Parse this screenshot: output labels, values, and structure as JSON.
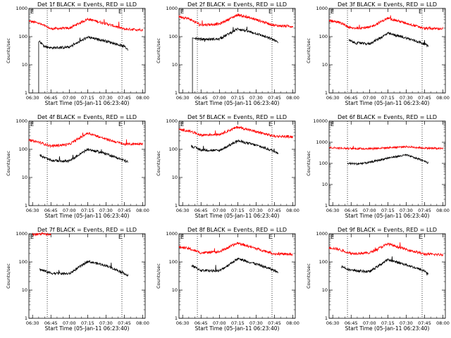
{
  "chart_data": [
    {
      "type": "line",
      "title": "Det 1f BLACK = Events, RED = LLD",
      "ylabel": "Counts/sec",
      "xlabel": "Start Time (05-Jan-11 06:23:40)",
      "yscale": "log",
      "ylim": [
        1,
        1000
      ],
      "yticks": [
        "1",
        "10",
        "100",
        "1000"
      ],
      "xticks": [
        "06:30",
        "06:45",
        "07:00",
        "07:15",
        "07:30",
        "07:45",
        "08:00"
      ],
      "xlim": [
        "06:27",
        "08:02"
      ],
      "vlines": [
        "06:42",
        "07:43"
      ],
      "corner_marks": [
        "E",
        "E"
      ],
      "series": [
        {
          "color": "#ff0000",
          "x": [
            "06:27",
            "06:35",
            "06:45",
            "07:00",
            "07:15",
            "07:30",
            "07:45",
            "08:00"
          ],
          "y": [
            360,
            300,
            190,
            200,
            420,
            290,
            185,
            175
          ]
        },
        {
          "color": "#000000",
          "x": [
            "06:36",
            "06:40",
            "06:45",
            "07:00",
            "07:15",
            "07:30",
            "07:45",
            "07:48"
          ],
          "y": [
            65,
            45,
            40,
            42,
            95,
            70,
            45,
            35
          ],
          "drop": {
            "x": "06:35",
            "y": 1
          }
        }
      ]
    },
    {
      "type": "line",
      "title": "Det 2f BLACK = Events, RED = LLD",
      "ylabel": "Counts/sec",
      "xlabel": "Start Time (05-Jan-11 06:23:40)",
      "yscale": "log",
      "ylim": [
        1,
        1000
      ],
      "yticks": [
        "1",
        "10",
        "100",
        "1000"
      ],
      "xticks": [
        "06:30",
        "06:45",
        "07:00",
        "07:15",
        "07:30",
        "07:45",
        "08:00"
      ],
      "xlim": [
        "06:27",
        "08:02"
      ],
      "vlines": [
        "06:42",
        "07:43"
      ],
      "corner_marks": [
        "E",
        "E"
      ],
      "series": [
        {
          "color": "#ff0000",
          "x": [
            "06:27",
            "06:35",
            "06:45",
            "07:00",
            "07:15",
            "07:30",
            "07:45",
            "08:00"
          ],
          "y": [
            520,
            430,
            260,
            280,
            600,
            400,
            250,
            230
          ]
        },
        {
          "color": "#000000",
          "x": [
            "06:40",
            "06:45",
            "07:00",
            "07:15",
            "07:30",
            "07:45",
            "07:48"
          ],
          "y": [
            90,
            80,
            82,
            190,
            130,
            75,
            60
          ],
          "drop": {
            "x": "06:38",
            "y": 1
          }
        }
      ]
    },
    {
      "type": "line",
      "title": "Det 3f BLACK = Events, RED = LLD",
      "ylabel": "Counts/sec",
      "xlabel": "Start Time (05-Jan-11 06:23:40)",
      "yscale": "log",
      "ylim": [
        1,
        1000
      ],
      "yticks": [
        "1",
        "10",
        "100",
        "1000"
      ],
      "xticks": [
        "06:30",
        "06:45",
        "07:00",
        "07:15",
        "07:30",
        "07:45",
        "08:00"
      ],
      "xlim": [
        "06:27",
        "08:02"
      ],
      "vlines": [
        "06:42",
        "07:43"
      ],
      "corner_marks": [
        "E",
        "E"
      ],
      "series": [
        {
          "color": "#ff0000",
          "x": [
            "06:27",
            "06:35",
            "06:45",
            "07:00",
            "07:15",
            "07:30",
            "07:45",
            "08:00"
          ],
          "y": [
            380,
            320,
            200,
            210,
            450,
            300,
            195,
            190
          ]
        },
        {
          "color": "#000000",
          "x": [
            "06:43",
            "06:48",
            "07:00",
            "07:15",
            "07:30",
            "07:45",
            "07:48"
          ],
          "y": [
            75,
            60,
            55,
            130,
            90,
            55,
            45
          ]
        }
      ]
    },
    {
      "type": "line",
      "title": "Det 4f BLACK = Events, RED = LLD",
      "ylabel": "Counts/sec",
      "xlabel": "Start Time (05-Jan-11 06:23:40)",
      "yscale": "log",
      "ylim": [
        1,
        1000
      ],
      "yticks": [
        "1",
        "10",
        "100",
        "1000"
      ],
      "xticks": [
        "06:30",
        "06:45",
        "07:00",
        "07:15",
        "07:30",
        "07:45",
        "08:00"
      ],
      "xlim": [
        "06:27",
        "08:02"
      ],
      "vlines": [
        "06:42",
        "07:43"
      ],
      "corner_marks": [
        "E",
        "E"
      ],
      "series": [
        {
          "color": "#ff0000",
          "x": [
            "06:27",
            "06:35",
            "06:45",
            "07:00",
            "07:15",
            "07:30",
            "07:45",
            "08:00"
          ],
          "y": [
            210,
            180,
            130,
            150,
            380,
            230,
            150,
            160
          ]
        },
        {
          "color": "#000000",
          "x": [
            "06:36",
            "06:45",
            "07:00",
            "07:15",
            "07:30",
            "07:45",
            "07:48"
          ],
          "y": [
            60,
            40,
            38,
            100,
            70,
            40,
            35
          ]
        }
      ]
    },
    {
      "type": "line",
      "title": "Det 5f BLACK = Events, RED = LLD",
      "ylabel": "Counts/sec",
      "xlabel": "Start Time (05-Jan-11 06:23:40)",
      "yscale": "log",
      "ylim": [
        1,
        1000
      ],
      "yticks": [
        "1",
        "10",
        "100",
        "1000"
      ],
      "xticks": [
        "06:30",
        "06:45",
        "07:00",
        "07:15",
        "07:30",
        "07:45",
        "08:00"
      ],
      "xlim": [
        "06:27",
        "08:02"
      ],
      "vlines": [
        "06:42",
        "07:43"
      ],
      "corner_marks": [
        "E",
        "E"
      ],
      "series": [
        {
          "color": "#ff0000",
          "x": [
            "06:27",
            "06:35",
            "06:45",
            "07:00",
            "07:15",
            "07:30",
            "07:45",
            "08:00"
          ],
          "y": [
            500,
            450,
            320,
            340,
            620,
            420,
            290,
            280
          ]
        },
        {
          "color": "#000000",
          "x": [
            "06:37",
            "06:45",
            "07:00",
            "07:15",
            "07:30",
            "07:45",
            "07:48"
          ],
          "y": [
            130,
            95,
            90,
            200,
            140,
            85,
            75
          ]
        }
      ]
    },
    {
      "type": "line",
      "title": "Det 6f BLACK = Events, RED = LLD",
      "ylabel": "Counts/sec",
      "xlabel": "Start Time (05-Jan-11 06:23:40)",
      "yscale": "log",
      "ylim": [
        1,
        10000
      ],
      "yticks": [
        "1",
        "10",
        "100",
        "1000",
        "10000"
      ],
      "xticks": [
        "06:30",
        "06:45",
        "07:00",
        "07:15",
        "07:30",
        "07:45",
        "08:00"
      ],
      "xlim": [
        "06:27",
        "08:02"
      ],
      "vlines": [
        "06:42",
        "07:43"
      ],
      "corner_marks": [
        "E"
      ],
      "series": [
        {
          "color": "#ff0000",
          "x": [
            "06:27",
            "06:45",
            "07:00",
            "07:15",
            "07:30",
            "07:45",
            "08:00"
          ],
          "y": [
            560,
            500,
            500,
            550,
            620,
            530,
            500
          ]
        },
        {
          "color": "#000000",
          "x": [
            "06:42",
            "06:50",
            "07:00",
            "07:15",
            "07:30",
            "07:45",
            "07:48"
          ],
          "y": [
            100,
            95,
            110,
            180,
            250,
            130,
            105
          ]
        }
      ]
    },
    {
      "type": "line",
      "title": "Det 7f BLACK = Events, RED = LLD",
      "ylabel": "Counts/sec",
      "xlabel": "Start Time (05-Jan-11 06:23:40)",
      "yscale": "log",
      "ylim": [
        1,
        1000
      ],
      "yticks": [
        "1",
        "10",
        "100",
        "1000"
      ],
      "xticks": [
        "06:30",
        "06:45",
        "07:00",
        "07:15",
        "07:30",
        "07:45",
        "08:00"
      ],
      "xlim": [
        "06:27",
        "08:02"
      ],
      "vlines": [
        "06:42",
        "07:43"
      ],
      "corner_marks": [
        "E",
        "E"
      ],
      "series": [
        {
          "color": "#ff0000",
          "x": [
            "06:30",
            "06:40",
            "06:45"
          ],
          "y": [
            950,
            1000,
            960
          ]
        },
        {
          "color": "#000000",
          "x": [
            "06:36",
            "06:45",
            "07:00",
            "07:15",
            "07:30",
            "07:45",
            "07:48"
          ],
          "y": [
            55,
            40,
            38,
            105,
            75,
            40,
            32
          ]
        }
      ]
    },
    {
      "type": "line",
      "title": "Det 8f BLACK = Events, RED = LLD",
      "ylabel": "Counts/sec",
      "xlabel": "Start Time (05-Jan-11 06:23:40)",
      "yscale": "log",
      "ylim": [
        1,
        1000
      ],
      "yticks": [
        "1",
        "10",
        "100",
        "1000"
      ],
      "xticks": [
        "06:30",
        "06:45",
        "07:00",
        "07:15",
        "07:30",
        "07:45",
        "08:00"
      ],
      "xlim": [
        "06:27",
        "08:02"
      ],
      "vlines": [
        "06:42",
        "07:43"
      ],
      "corner_marks": [
        "E",
        "E"
      ],
      "series": [
        {
          "color": "#ff0000",
          "x": [
            "06:27",
            "06:35",
            "06:45",
            "07:00",
            "07:15",
            "07:30",
            "07:45",
            "08:00"
          ],
          "y": [
            340,
            300,
            210,
            230,
            470,
            300,
            195,
            185
          ]
        },
        {
          "color": "#000000",
          "x": [
            "06:37",
            "06:45",
            "07:00",
            "07:15",
            "07:30",
            "07:45",
            "07:48"
          ],
          "y": [
            75,
            50,
            48,
            130,
            85,
            50,
            42
          ]
        }
      ]
    },
    {
      "type": "line",
      "title": "Det 9f BLACK = Events, RED = LLD",
      "ylabel": "Counts/sec",
      "xlabel": "Start Time (05-Jan-11 06:23:40)",
      "yscale": "log",
      "ylim": [
        1,
        1000
      ],
      "yticks": [
        "1",
        "10",
        "100",
        "1000"
      ],
      "xticks": [
        "06:30",
        "06:45",
        "07:00",
        "07:15",
        "07:30",
        "07:45",
        "08:00"
      ],
      "xlim": [
        "06:27",
        "08:02"
      ],
      "vlines": [
        "06:42",
        "07:43"
      ],
      "corner_marks": [
        "E",
        "E"
      ],
      "series": [
        {
          "color": "#ff0000",
          "x": [
            "06:27",
            "06:35",
            "06:45",
            "07:00",
            "07:15",
            "07:30",
            "07:45",
            "08:00"
          ],
          "y": [
            330,
            280,
            200,
            210,
            440,
            280,
            190,
            180
          ]
        },
        {
          "color": "#000000",
          "x": [
            "06:37",
            "06:45",
            "07:00",
            "07:15",
            "07:30",
            "07:45",
            "07:48"
          ],
          "y": [
            70,
            50,
            45,
            120,
            80,
            48,
            38
          ]
        }
      ]
    }
  ]
}
